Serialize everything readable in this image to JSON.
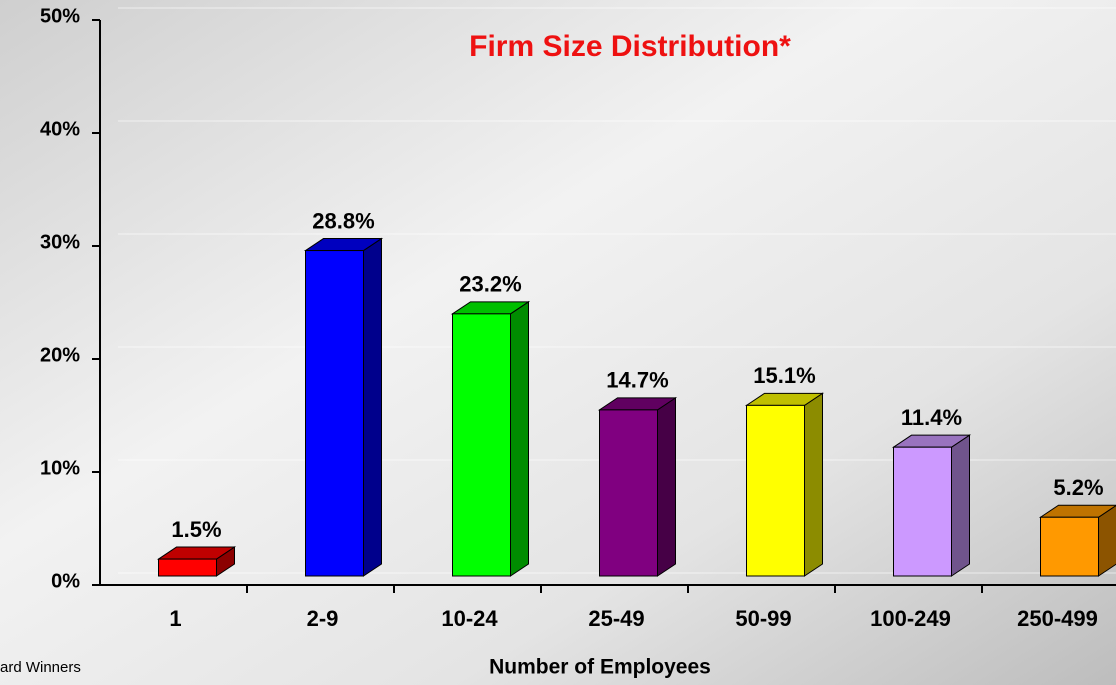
{
  "chart_data": {
    "type": "bar3d",
    "title": "Firm Size Distribution*",
    "xlabel": "Number of Employees",
    "footnote": "ard Winners",
    "categories": [
      "1",
      "2-9",
      "10-24",
      "25-49",
      "50-99",
      "100-249",
      "250-499"
    ],
    "values": [
      1.5,
      28.8,
      23.2,
      14.7,
      15.1,
      11.4,
      5.2
    ],
    "value_labels": [
      "1.5%",
      "28.8%",
      "23.2%",
      "14.7%",
      "15.1%",
      "11.4%",
      "5.2%"
    ],
    "colors": [
      "#ff0000",
      "#0000ff",
      "#00ff00",
      "#800080",
      "#ffff00",
      "#cc99ff",
      "#ff9900"
    ],
    "ylim": [
      0,
      50
    ],
    "yticks": [
      {
        "value": 0,
        "label": "0%"
      },
      {
        "value": 10,
        "label": "10%"
      },
      {
        "value": 20,
        "label": "20%"
      },
      {
        "value": 30,
        "label": "30%"
      },
      {
        "value": 40,
        "label": "40%"
      },
      {
        "value": 50,
        "label": "50%"
      }
    ],
    "grid": true
  }
}
